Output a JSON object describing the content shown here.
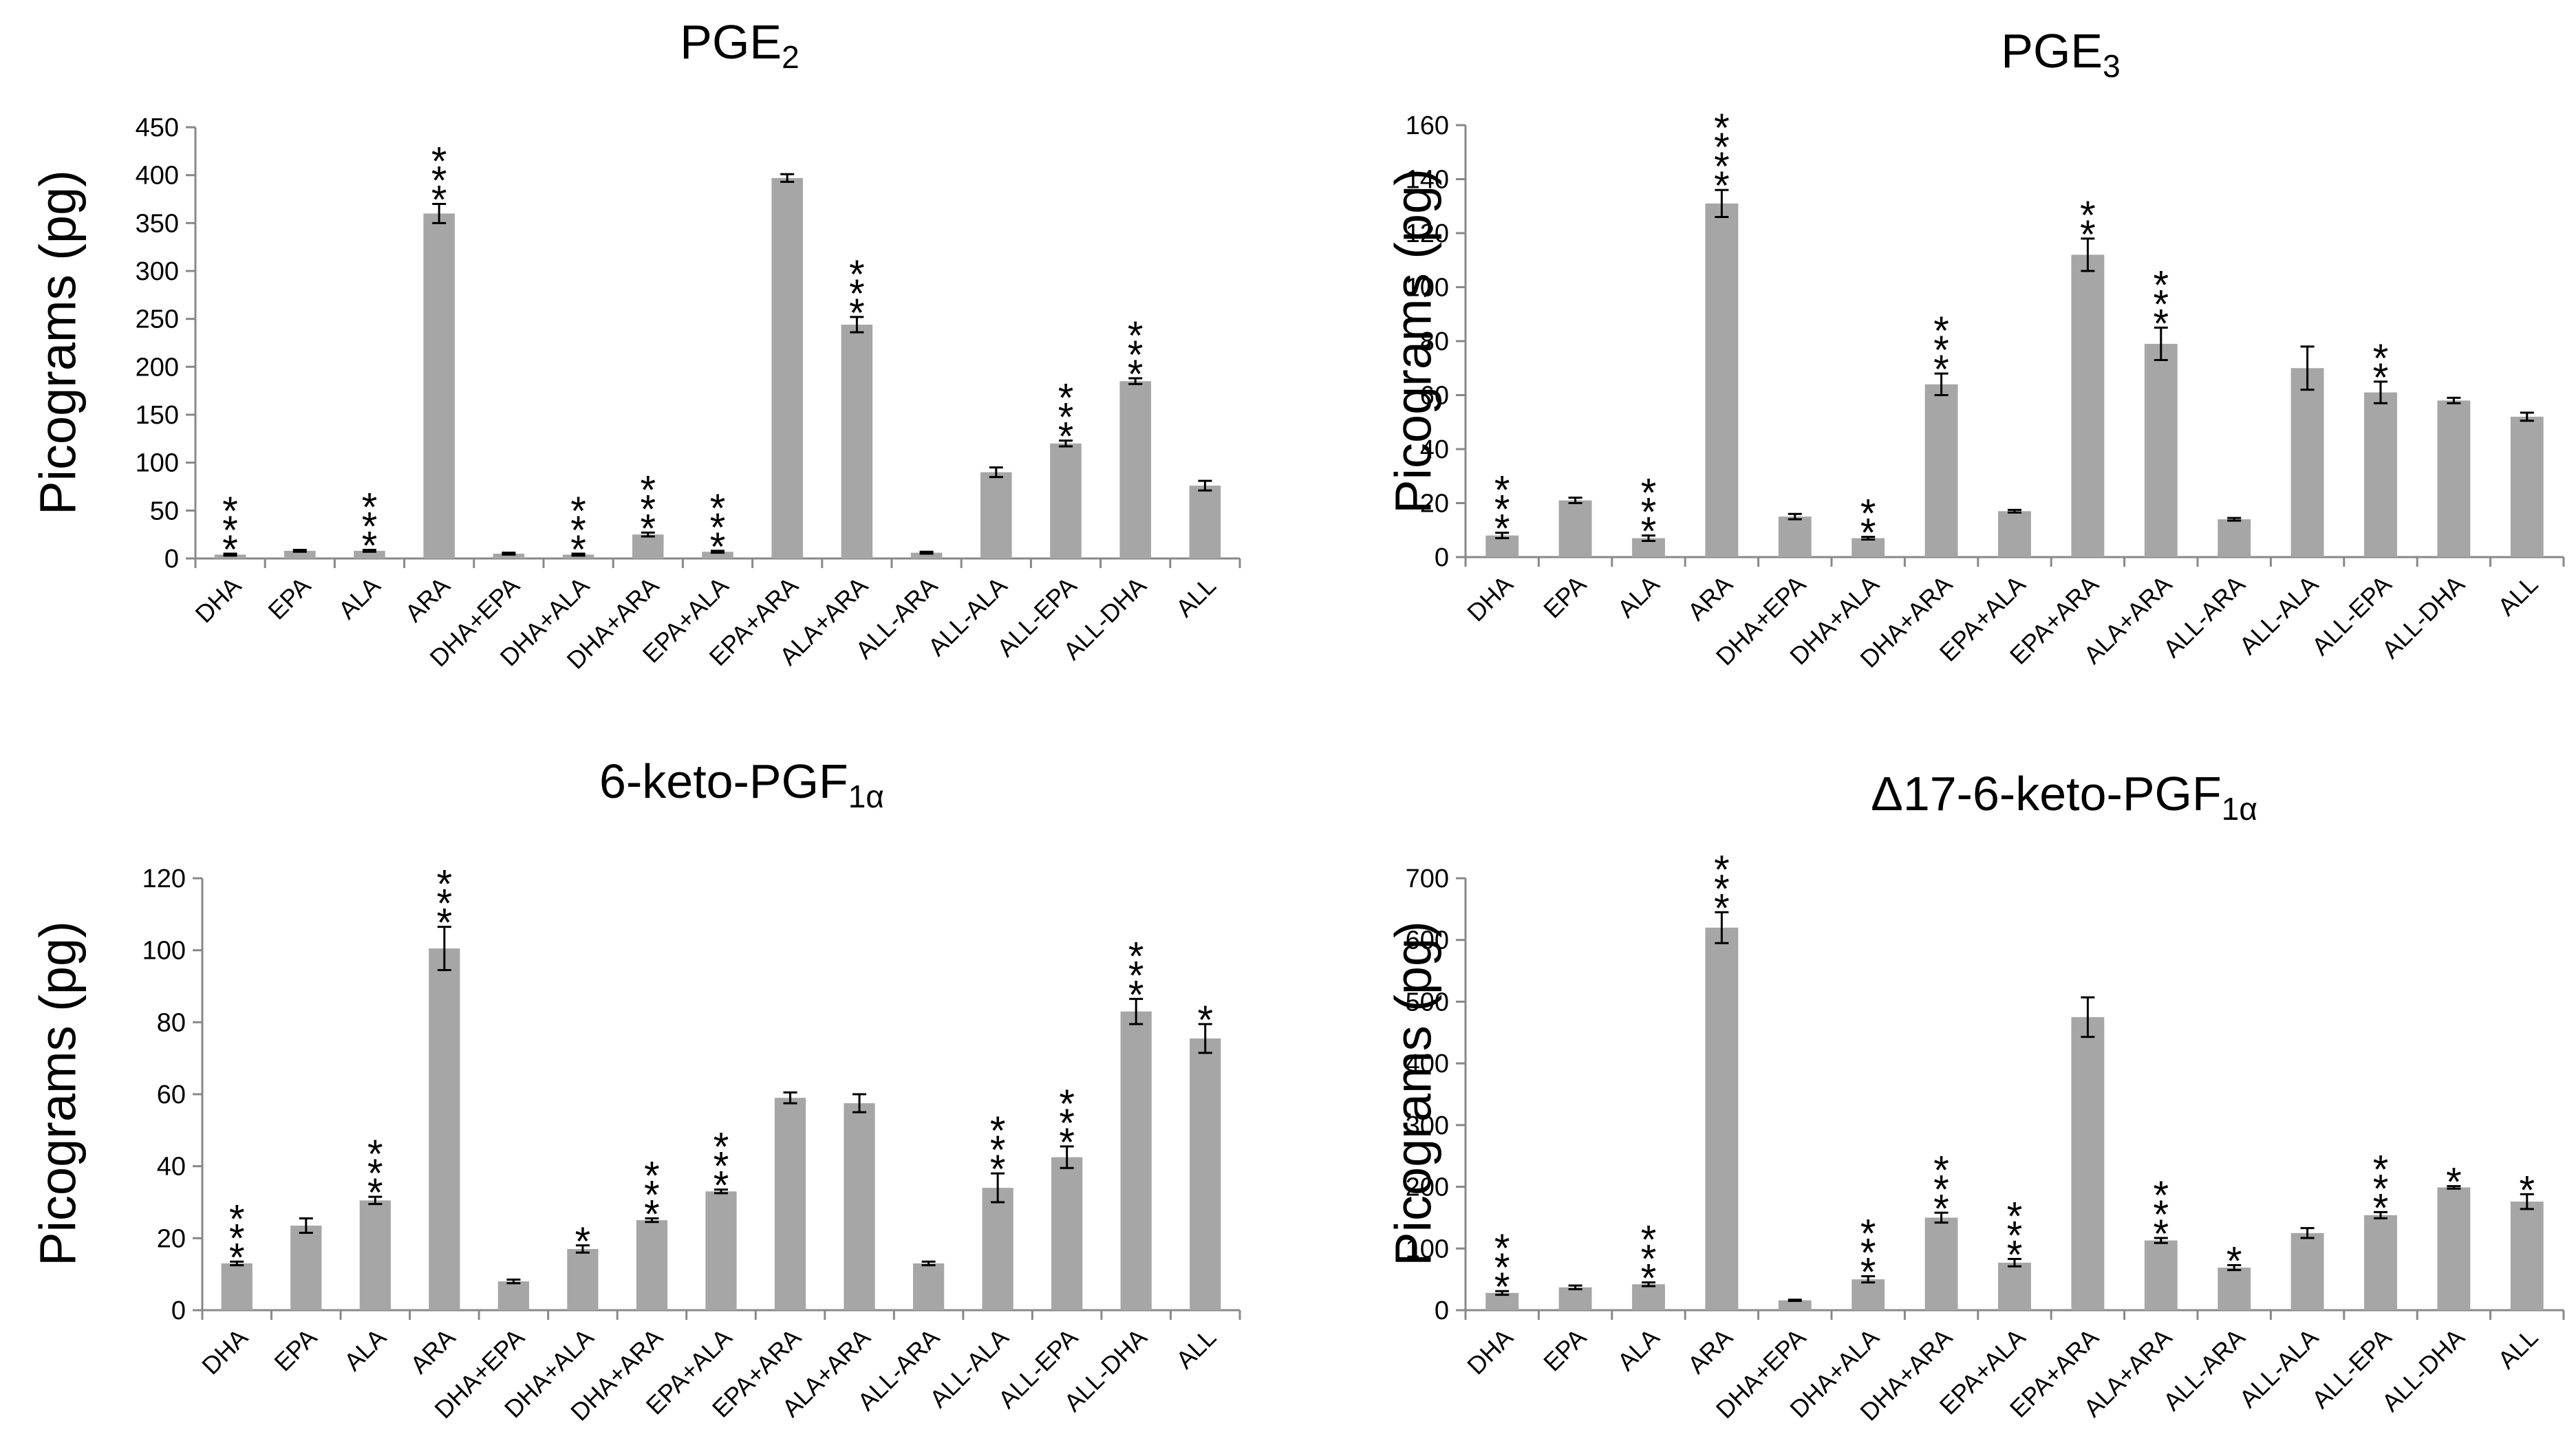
{
  "chart_data": [
    {
      "type": "bar",
      "title": "PGE",
      "title_sub": "2",
      "ylabel": "Picograms (pg)",
      "ylim": [
        0,
        450
      ],
      "yticks": [
        0,
        50,
        100,
        150,
        200,
        250,
        300,
        350,
        400,
        450
      ],
      "grid": false,
      "categories": [
        "DHA",
        "EPA",
        "ALA",
        "ARA",
        "DHA+EPA",
        "DHA+ALA",
        "DHA+ARA",
        "EPA+ALA",
        "EPA+ARA",
        "ALA+ARA",
        "ALL-ARA",
        "ALL-ALA",
        "ALL-EPA",
        "ALL-DHA",
        "ALL"
      ],
      "values": [
        4,
        8,
        8,
        360,
        5,
        4,
        25,
        7,
        397,
        244,
        6,
        90,
        120,
        185,
        76
      ],
      "errors": [
        1,
        1,
        1,
        10,
        1,
        1,
        2,
        1,
        4,
        8,
        1,
        5,
        3,
        3,
        5
      ],
      "significance": [
        "***",
        "",
        "***",
        "***",
        "",
        "***",
        "***",
        "***",
        "",
        "***",
        "",
        "",
        "***",
        "***",
        ""
      ]
    },
    {
      "type": "bar",
      "title": "PGE",
      "title_sub": "3",
      "ylabel": "Picograms (pg)",
      "ylim": [
        0,
        160
      ],
      "yticks": [
        0,
        20,
        40,
        60,
        80,
        100,
        120,
        140,
        160
      ],
      "grid": false,
      "categories": [
        "DHA",
        "EPA",
        "ALA",
        "ARA",
        "DHA+EPA",
        "DHA+ALA",
        "DHA+ARA",
        "EPA+ALA",
        "EPA+ARA",
        "ALA+ARA",
        "ALL-ARA",
        "ALL-ALA",
        "ALL-EPA",
        "ALL-DHA",
        "ALL"
      ],
      "values": [
        8,
        21,
        7,
        131,
        15,
        7,
        64,
        17,
        112,
        79,
        14,
        70,
        61,
        58,
        52
      ],
      "errors": [
        1,
        1,
        1,
        5,
        1,
        0.5,
        4,
        0.5,
        6,
        6,
        0.5,
        8,
        4,
        1,
        1.5
      ],
      "significance": [
        "***",
        "",
        "***",
        "****",
        "",
        "**",
        "***",
        "",
        "**",
        "***",
        "",
        "",
        "**",
        "",
        ""
      ]
    },
    {
      "type": "bar",
      "title": "6-keto-PGF",
      "title_sub": "1α",
      "ylabel": "Picograms (pg)",
      "ylim": [
        0,
        120
      ],
      "yticks": [
        0,
        20,
        40,
        60,
        80,
        100,
        120
      ],
      "grid": false,
      "categories": [
        "DHA",
        "EPA",
        "ALA",
        "ARA",
        "DHA+EPA",
        "DHA+ALA",
        "DHA+ARA",
        "EPA+ALA",
        "EPA+ARA",
        "ALA+ARA",
        "ALL-ARA",
        "ALL-ALA",
        "ALL-EPA",
        "ALL-DHA",
        "ALL"
      ],
      "values": [
        13,
        23.5,
        30.5,
        100.5,
        8,
        17,
        25,
        33,
        59,
        57.5,
        13,
        34,
        42.5,
        83,
        75.5
      ],
      "errors": [
        0.5,
        2,
        1,
        6,
        0.5,
        1,
        0.5,
        0.5,
        1.5,
        2.5,
        0.5,
        4,
        3,
        3.5,
        4
      ],
      "significance": [
        "***",
        "",
        "***",
        "***",
        "",
        "*",
        "***",
        "***",
        "",
        "",
        "",
        "***",
        "***",
        "***",
        "*"
      ]
    },
    {
      "type": "bar",
      "title": "Δ17-6-keto-PGF",
      "title_sub": "1α",
      "ylabel": "Picograms (pg)",
      "ylim": [
        0,
        700
      ],
      "yticks": [
        0,
        100,
        200,
        300,
        400,
        500,
        600,
        700
      ],
      "grid": false,
      "categories": [
        "DHA",
        "EPA",
        "ALA",
        "ARA",
        "DHA+EPA",
        "DHA+ALA",
        "DHA+ARA",
        "EPA+ALA",
        "EPA+ARA",
        "ALA+ARA",
        "ALL-ARA",
        "ALL-ALA",
        "ALL-EPA",
        "ALL-DHA",
        "ALL"
      ],
      "values": [
        28,
        37,
        42,
        620,
        16,
        50,
        150,
        77,
        475,
        113,
        69,
        125,
        154,
        199,
        176
      ],
      "errors": [
        3,
        3,
        3,
        25,
        1,
        5,
        8,
        6,
        32,
        4,
        4,
        8,
        5,
        2,
        12
      ],
      "significance": [
        "***",
        "",
        "***",
        "***",
        "",
        "***",
        "***",
        "***",
        "",
        "***",
        "*",
        "",
        "***",
        "*",
        "*"
      ]
    }
  ]
}
